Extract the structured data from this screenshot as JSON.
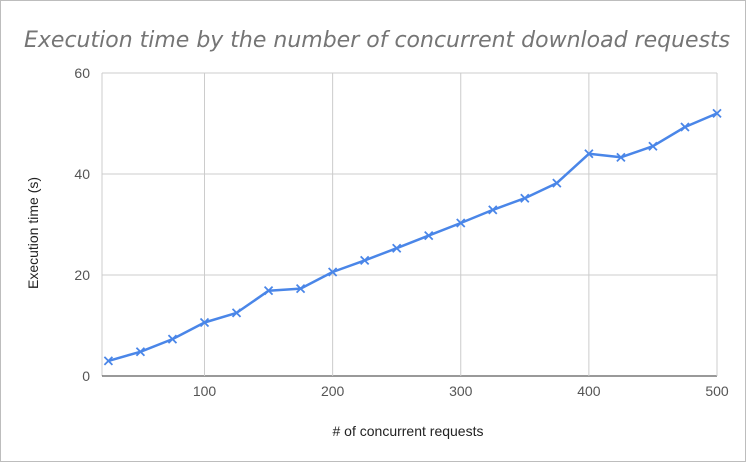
{
  "chart_data": {
    "type": "line",
    "title": "Execution time by the number of concurrent download requests",
    "xlabel": "# of concurrent requests",
    "ylabel": "Execution time (s)",
    "xlim": [
      20,
      500
    ],
    "ylim": [
      0,
      60
    ],
    "x_ticks": [
      100,
      200,
      300,
      400,
      500
    ],
    "y_ticks": [
      0,
      20,
      40,
      60
    ],
    "grid": true,
    "legend": "none",
    "color": "#4a86e8",
    "series": [
      {
        "x": [
          25,
          50,
          75,
          100,
          125,
          150,
          175,
          200,
          225,
          250,
          275,
          300,
          325,
          350,
          375,
          400,
          425,
          450,
          475,
          500
        ],
        "values": [
          3.0,
          4.8,
          7.3,
          10.6,
          12.5,
          16.9,
          17.3,
          20.6,
          22.9,
          25.3,
          27.8,
          30.3,
          32.9,
          35.2,
          38.2,
          44.0,
          43.3,
          45.5,
          49.3,
          52.0
        ]
      }
    ]
  }
}
